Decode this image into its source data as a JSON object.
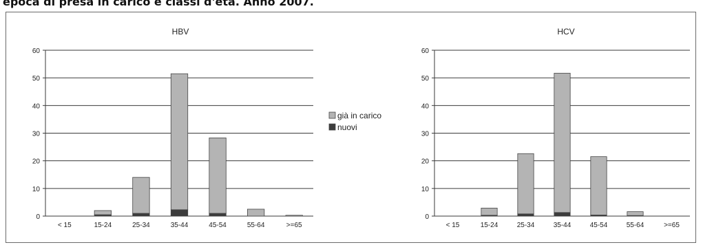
{
  "heading": "epoca di presa in carico e classi d'età. Anno 2007.",
  "colors": {
    "gia": "#b4b4b4",
    "nuovi": "#3c3c3c",
    "grid": "#3a3a3a",
    "edge": "#444444"
  },
  "legend": [
    {
      "label": "già in carico",
      "color": "#b4b4b4"
    },
    {
      "label": "nuovi",
      "color": "#3c3c3c"
    }
  ],
  "chart_data": [
    {
      "type": "bar",
      "stacked": true,
      "title": "HBV",
      "categories": [
        "< 15",
        "15-24",
        "25-34",
        "35-44",
        "45-54",
        "55-64",
        ">=65"
      ],
      "ylim": [
        0,
        60
      ],
      "yticks": [
        0,
        10,
        20,
        30,
        40,
        50,
        60
      ],
      "grid": true,
      "series": [
        {
          "name": "nuovi",
          "values": [
            0,
            0.5,
            1.0,
            2.3,
            1.0,
            0,
            0
          ]
        },
        {
          "name": "già in carico",
          "values": [
            0,
            1.5,
            13.0,
            49.2,
            27.3,
            2.5,
            0.3
          ]
        }
      ]
    },
    {
      "type": "bar",
      "stacked": true,
      "title": "HCV",
      "categories": [
        "< 15",
        "15-24",
        "25-34",
        "35-44",
        "45-54",
        "55-64",
        ">=65"
      ],
      "ylim": [
        0,
        60
      ],
      "yticks": [
        0,
        10,
        20,
        30,
        40,
        50,
        60
      ],
      "grid": true,
      "series": [
        {
          "name": "nuovi",
          "values": [
            0,
            0.3,
            0.8,
            1.3,
            0.4,
            0.2,
            0
          ]
        },
        {
          "name": "già in carico",
          "values": [
            0,
            2.6,
            21.8,
            50.4,
            21.1,
            1.4,
            0
          ]
        }
      ]
    }
  ]
}
